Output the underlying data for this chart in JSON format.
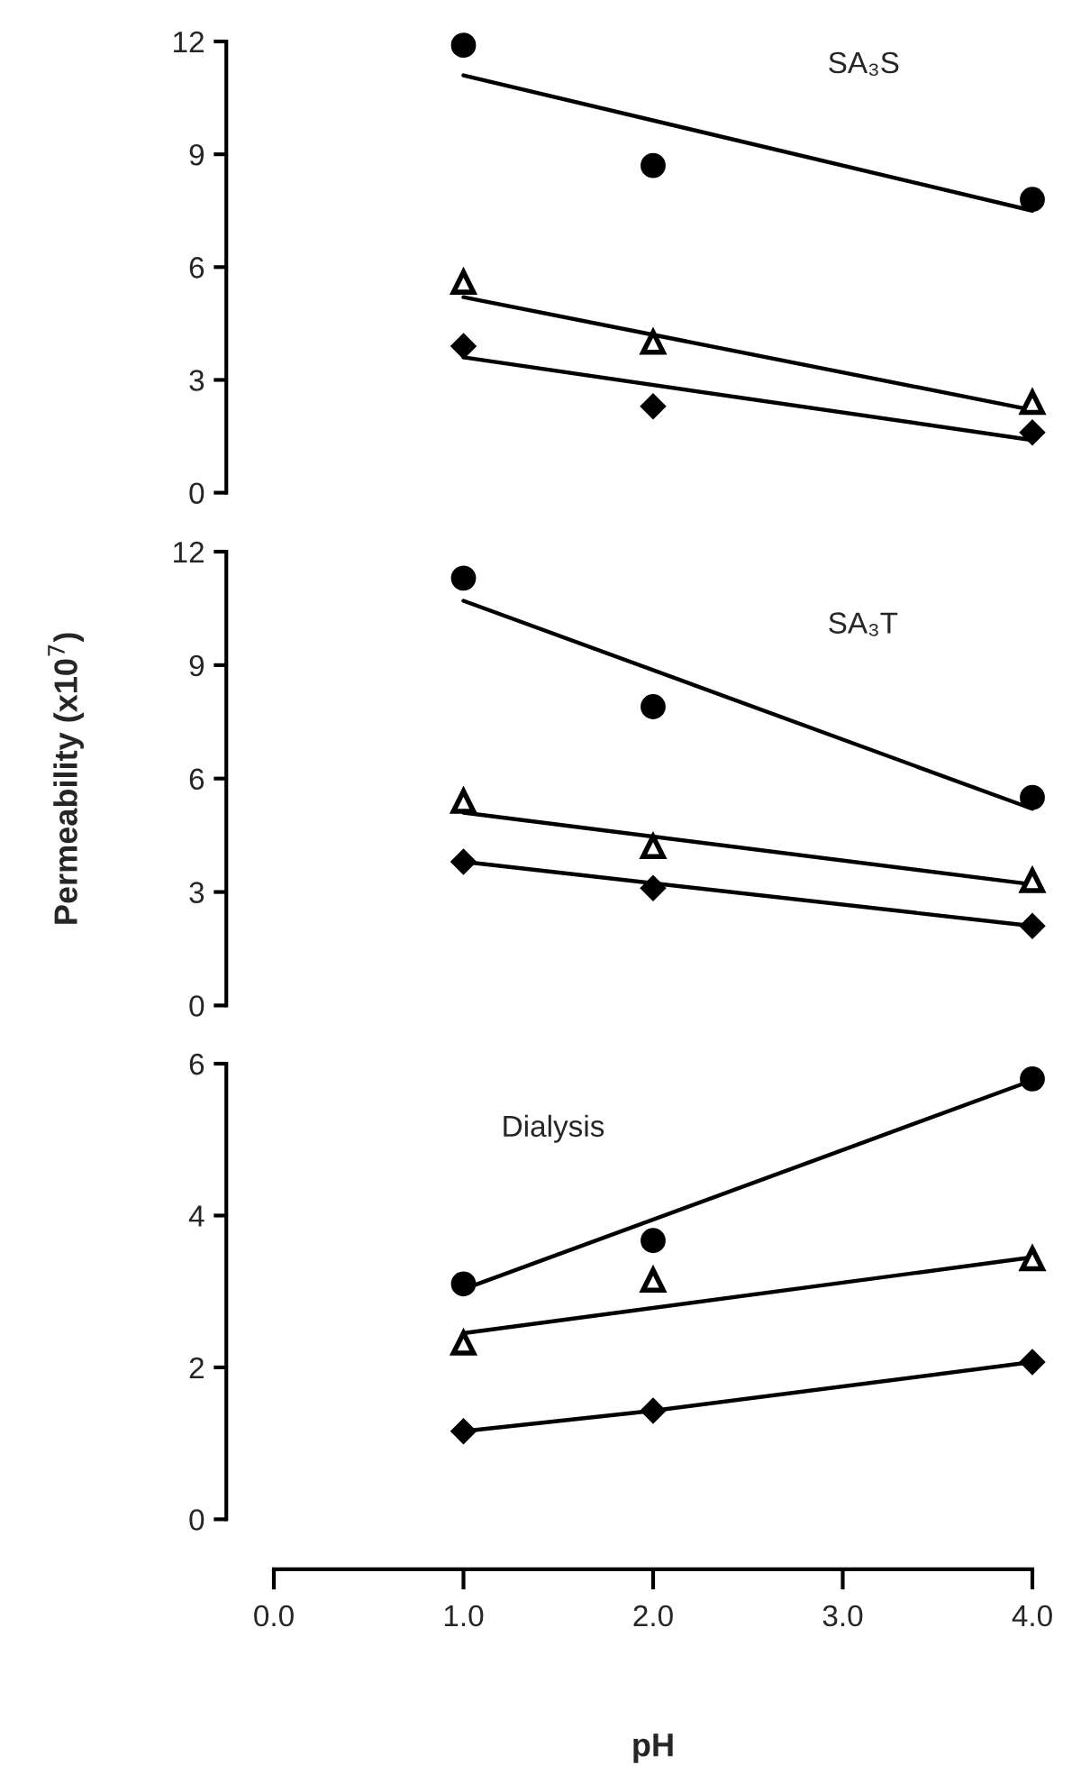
{
  "chart_data": [
    {
      "type": "scatter",
      "annotations": [
        "SA₃S"
      ],
      "xlim": [
        0,
        4
      ],
      "ylim": [
        0,
        12
      ],
      "yticks": [
        0,
        3,
        6,
        9,
        12
      ],
      "tick_labels": "y",
      "series": [
        {
          "type": "scatter",
          "marker": "circle",
          "color": "#000000",
          "x": [
            1,
            2,
            4
          ],
          "values": [
            11.9,
            8.7,
            7.8
          ]
        },
        {
          "type": "scatter",
          "marker": "triangle",
          "color": "#000000",
          "x": [
            1,
            2,
            4
          ],
          "values": [
            5.6,
            4.0,
            2.4
          ]
        },
        {
          "type": "scatter",
          "marker": "diamond",
          "color": "#000000",
          "x": [
            1,
            2,
            4
          ],
          "values": [
            3.9,
            2.3,
            1.6
          ]
        },
        {
          "type": "line",
          "marker": "none",
          "color": "#000000",
          "x": [
            1,
            4
          ],
          "values": [
            11.1,
            7.5
          ]
        },
        {
          "type": "line",
          "marker": "none",
          "color": "#000000",
          "x": [
            1,
            4
          ],
          "values": [
            5.2,
            2.2
          ]
        },
        {
          "type": "line",
          "marker": "none",
          "color": "#000000",
          "x": [
            1,
            4
          ],
          "values": [
            3.6,
            1.4
          ]
        }
      ]
    },
    {
      "type": "scatter",
      "annotations": [
        "SA₃T"
      ],
      "ylabel": "Permeability (x10$^{7}$)",
      "xlim": [
        0,
        4
      ],
      "ylim": [
        0,
        12
      ],
      "yticks": [
        0,
        3,
        6,
        9,
        12
      ],
      "tick_labels": "y",
      "series": [
        {
          "type": "scatter",
          "marker": "circle",
          "color": "#000000",
          "x": [
            1,
            2,
            4
          ],
          "values": [
            11.3,
            7.9,
            5.5
          ]
        },
        {
          "type": "scatter",
          "marker": "triangle",
          "color": "#000000",
          "x": [
            1,
            2,
            4
          ],
          "values": [
            5.4,
            4.2,
            3.3
          ]
        },
        {
          "type": "scatter",
          "marker": "diamond",
          "color": "#000000",
          "x": [
            1,
            2,
            4
          ],
          "values": [
            3.8,
            3.1,
            2.1
          ]
        },
        {
          "type": "line",
          "marker": "none",
          "color": "#000000",
          "x": [
            1,
            4
          ],
          "values": [
            10.7,
            5.2
          ]
        },
        {
          "type": "line",
          "marker": "none",
          "color": "#000000",
          "x": [
            1,
            4
          ],
          "values": [
            5.1,
            3.2
          ]
        },
        {
          "type": "line",
          "marker": "none",
          "color": "#000000",
          "x": [
            1,
            4
          ],
          "values": [
            3.8,
            2.1
          ]
        }
      ]
    },
    {
      "type": "scatter",
      "annotations": [
        "Dialysis"
      ],
      "xlabel": "pH",
      "xlim": [
        0,
        4
      ],
      "xticks": [
        {
          "value": 0,
          "label": "0.0"
        },
        {
          "value": 1,
          "label": "1.0"
        },
        {
          "value": 2,
          "label": "2.0"
        },
        {
          "value": 3,
          "label": "3.0"
        },
        {
          "value": 4,
          "label": "4.0"
        }
      ],
      "ylim": [
        0,
        6
      ],
      "yticks": [
        0,
        2,
        4,
        6
      ],
      "series": [
        {
          "type": "scatter",
          "marker": "circle",
          "color": "#000000",
          "x": [
            1,
            2,
            4
          ],
          "values": [
            3.1,
            3.67,
            5.8
          ]
        },
        {
          "type": "scatter",
          "marker": "triangle",
          "color": "#000000",
          "x": [
            1,
            2,
            4
          ],
          "values": [
            2.32,
            3.15,
            3.43
          ]
        },
        {
          "type": "scatter",
          "marker": "diamond",
          "color": "#000000",
          "x": [
            1,
            2,
            4
          ],
          "values": [
            1.16,
            1.43,
            2.07
          ]
        },
        {
          "type": "line",
          "marker": "none",
          "color": "#000000",
          "x": [
            1,
            4
          ],
          "values": [
            3.03,
            5.78
          ]
        },
        {
          "type": "line",
          "marker": "none",
          "color": "#000000",
          "x": [
            1,
            4
          ],
          "values": [
            2.45,
            3.45
          ]
        },
        {
          "type": "line",
          "marker": "none",
          "color": "#000000",
          "x": [
            1,
            2,
            4
          ],
          "values": [
            1.16,
            1.43,
            2.07
          ]
        }
      ]
    }
  ]
}
